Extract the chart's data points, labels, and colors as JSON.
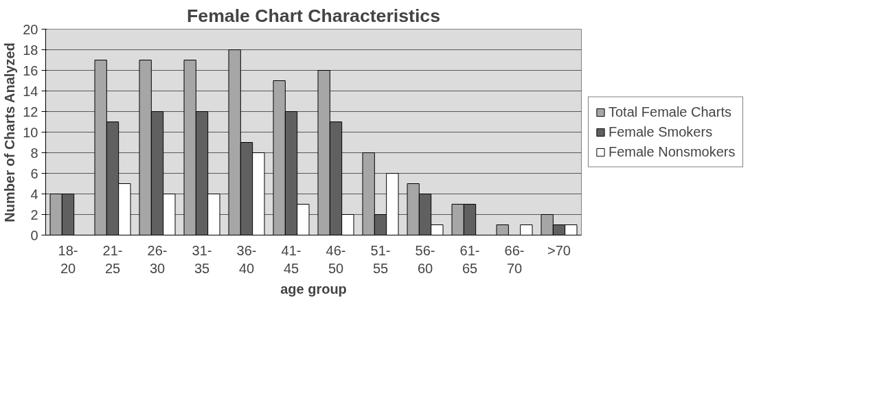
{
  "chart_data": {
    "type": "bar",
    "title": "Female Chart Characteristics",
    "xlabel": "age group",
    "ylabel": "Number of Charts Analyzed",
    "categories": [
      "18-\n20",
      "21-\n25",
      "26-\n30",
      "31-\n35",
      "36-\n40",
      "41-\n45",
      "46-\n50",
      "51-\n55",
      "56-\n60",
      "61-\n65",
      "66-\n70",
      ">70"
    ],
    "series": [
      {
        "name": "Total Female Charts",
        "color": "#a6a6a6",
        "values": [
          4,
          17,
          17,
          17,
          18,
          15,
          16,
          8,
          5,
          3,
          1,
          2
        ]
      },
      {
        "name": "Female Smokers",
        "color": "#606060",
        "values": [
          4,
          11,
          12,
          12,
          9,
          12,
          11,
          2,
          4,
          3,
          null,
          1
        ]
      },
      {
        "name": "Female Nonsmokers",
        "color": "#ffffff",
        "values": [
          null,
          5,
          4,
          4,
          8,
          3,
          2,
          6,
          1,
          null,
          1,
          1
        ]
      }
    ],
    "ylim": [
      0,
      20
    ],
    "yticks": [
      0,
      2,
      4,
      6,
      8,
      10,
      12,
      14,
      16,
      18,
      20
    ],
    "grid": "y",
    "legend": "right"
  }
}
